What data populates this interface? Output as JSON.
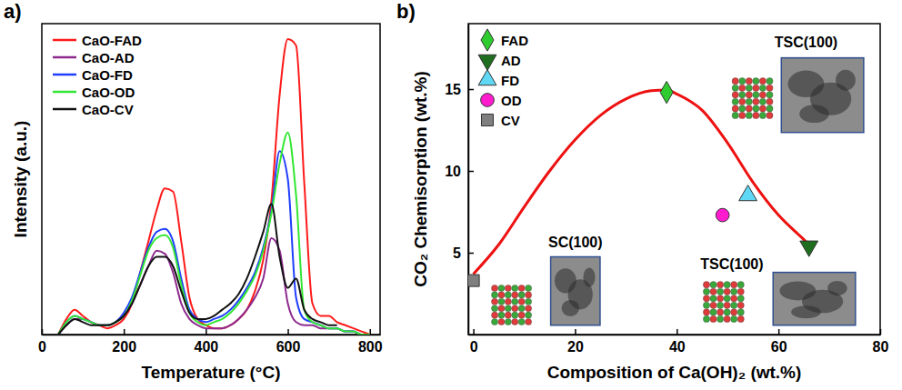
{
  "chart_data": [
    {
      "panel_label": "a)",
      "type": "line",
      "x_label": "Temperature (°C)",
      "y_label": "Intensity (a.u.)",
      "x": [
        40,
        60,
        80,
        100,
        120,
        140,
        160,
        180,
        200,
        220,
        240,
        260,
        280,
        300,
        320,
        340,
        360,
        380,
        400,
        420,
        440,
        460,
        480,
        500,
        520,
        540,
        560,
        580,
        600,
        620,
        640,
        660,
        680,
        700,
        720,
        740,
        760,
        780,
        800
      ],
      "xlim": [
        0,
        825
      ],
      "xticks": [
        0,
        200,
        400,
        600,
        800
      ],
      "ylim": [
        0,
        100
      ],
      "tick_labels": "x",
      "legend": "upper left",
      "series": [
        {
          "name": "CaO-FAD",
          "color": "#ff1a1a",
          "values": [
            0,
            5,
            8,
            6,
            4,
            3,
            2,
            3,
            5,
            10,
            20,
            30,
            40,
            47,
            46,
            30,
            12,
            5,
            3,
            2,
            2,
            3,
            5,
            8,
            14,
            24,
            43,
            77,
            95,
            93,
            49,
            10,
            6,
            6,
            4,
            3,
            2,
            1,
            0
          ]
        },
        {
          "name": "CaO-AD",
          "color": "#8e2a8e",
          "values": [
            0,
            3,
            5,
            5,
            4,
            3,
            3,
            4,
            6,
            10,
            16,
            22,
            27,
            26,
            20,
            10,
            5,
            3,
            2,
            2,
            2,
            3,
            5,
            8,
            12,
            18,
            31,
            27,
            10,
            4,
            3,
            3,
            2,
            2,
            2,
            1,
            1,
            0,
            0
          ]
        },
        {
          "name": "CaO-FD",
          "color": "#1f3fff",
          "values": [
            0,
            4,
            6,
            5,
            4,
            3,
            3,
            4,
            7,
            12,
            20,
            28,
            33,
            34,
            30,
            18,
            8,
            5,
            4,
            5,
            6,
            8,
            11,
            15,
            20,
            28,
            40,
            59,
            50,
            12,
            5,
            4,
            3,
            2,
            2,
            1,
            1,
            0,
            0
          ]
        },
        {
          "name": "CaO-OD",
          "color": "#33e633",
          "values": [
            0,
            4,
            6,
            5,
            4,
            3,
            3,
            4,
            6,
            11,
            19,
            27,
            31,
            32,
            28,
            16,
            7,
            4,
            3,
            4,
            5,
            7,
            10,
            14,
            19,
            27,
            39,
            55,
            65,
            45,
            8,
            4,
            3,
            2,
            2,
            1,
            1,
            0,
            0
          ]
        },
        {
          "name": "CaO-CV",
          "color": "#111111",
          "values": [
            0,
            3,
            5,
            4,
            3,
            3,
            3,
            4,
            6,
            10,
            16,
            22,
            25,
            25,
            22,
            14,
            7,
            5,
            5,
            6,
            8,
            10,
            13,
            18,
            25,
            33,
            42,
            25,
            15,
            18,
            8,
            5,
            4,
            3,
            3,
            null,
            null,
            null,
            null
          ]
        }
      ]
    },
    {
      "panel_label": "b)",
      "type": "scatter",
      "x_label": "Composition of Ca(OH)₂ (wt.%)",
      "y_label": "CO₂ Chemisorption (wt.%)",
      "xlim": [
        -1,
        80
      ],
      "xticks": [
        0,
        20,
        40,
        60,
        80
      ],
      "ylim": [
        0,
        19
      ],
      "yticks": [
        5,
        10,
        15
      ],
      "legend": "upper left",
      "series": [
        {
          "type": "line",
          "color": "#ee1111",
          "x": [
            0,
            5,
            10,
            15,
            20,
            25,
            30,
            35,
            38,
            40,
            45,
            50,
            55,
            60,
            65,
            66
          ],
          "values": [
            3.7,
            5.5,
            7.8,
            10.0,
            11.9,
            13.4,
            14.4,
            14.9,
            14.95,
            14.7,
            13.7,
            11.7,
            9.3,
            7.3,
            5.8,
            5.5
          ]
        },
        {
          "name": "FAD",
          "color": "#2ecc2e",
          "marker": "diamond",
          "x": [
            38
          ],
          "values": [
            14.8
          ]
        },
        {
          "name": "AD",
          "color": "#1f6e1f",
          "marker": "triangle-down",
          "x": [
            66
          ],
          "values": [
            5.4
          ]
        },
        {
          "name": "FD",
          "color": "#5fd8f5",
          "marker": "triangle-up",
          "x": [
            54
          ],
          "values": [
            8.5
          ]
        },
        {
          "name": "OD",
          "color": "#ff1ccf",
          "marker": "circle",
          "x": [
            49
          ],
          "values": [
            7.3
          ]
        },
        {
          "name": "CV",
          "color": "#7f7f7f",
          "marker": "square",
          "x": [
            0
          ],
          "values": [
            3.3
          ]
        }
      ],
      "annotations": [
        {
          "text": "SC(100)"
        },
        {
          "text": "TSC(100)"
        },
        {
          "text": "TSC(100)"
        }
      ]
    }
  ]
}
